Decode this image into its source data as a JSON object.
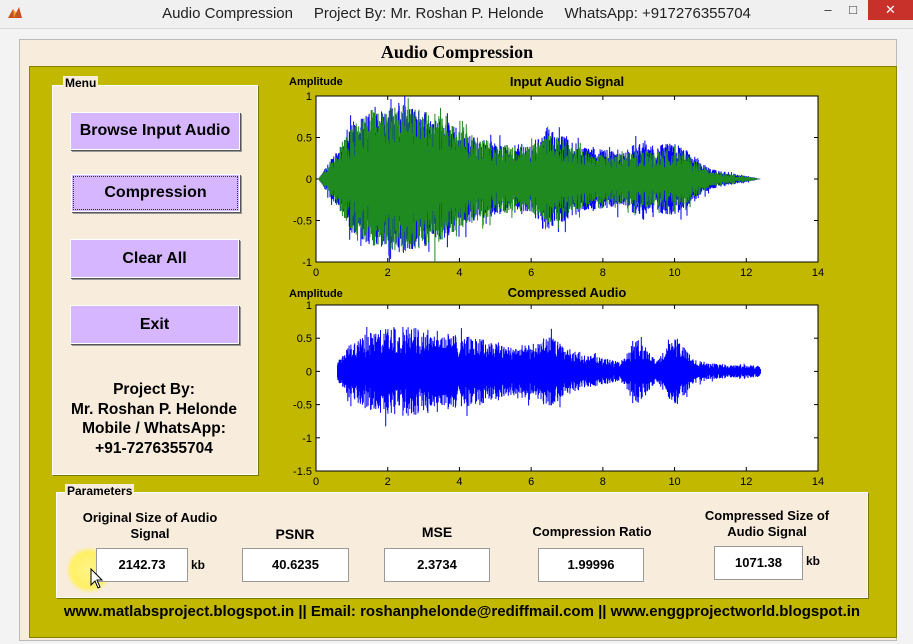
{
  "window": {
    "title": "Audio Compression     Project By: Mr. Roshan P. Helonde     WhatsApp: +917276355704",
    "min": "–",
    "max": "□",
    "close": "✕"
  },
  "main_title": "Audio Compression",
  "menu": {
    "label": "Menu",
    "buttons": [
      "Browse Input Audio",
      "Compression",
      "Clear All",
      "Exit"
    ],
    "credits": [
      "Project By:",
      "Mr. Roshan P. Helonde",
      "Mobile / WhatsApp:",
      "+91-7276355704"
    ]
  },
  "params": {
    "label": "Parameters",
    "original_label": "Original Size of Audio Signal",
    "original_value": "2142.73",
    "original_unit": "kb",
    "psnr_label": "PSNR",
    "psnr_value": "40.6235",
    "mse_label": "MSE",
    "mse_value": "2.3734",
    "ratio_label": "Compression Ratio",
    "ratio_value": "1.99996",
    "compressed_label": "Compressed Size of Audio Signal",
    "compressed_value": "1071.38",
    "compressed_unit": "kb"
  },
  "footer": "www.matlabsproject.blogspot.in || Email: roshanphelonde@rediffmail.com || www.enggprojectworld.blogspot.in",
  "colors": {
    "olive": "#c2b800",
    "button": "#d6b6ff",
    "panel": "#f8ecdc",
    "blue_trace": "#0000ff",
    "green_trace": "#1f8a1f"
  },
  "chart_data": [
    {
      "type": "line",
      "title": "Input Audio Signal",
      "ylabel": "Amplitude",
      "xlim": [
        0,
        14
      ],
      "ylim": [
        -1,
        1
      ],
      "x_ticks": [
        "0",
        "2",
        "4",
        "6",
        "8",
        "10",
        "12",
        "14"
      ],
      "y_ticks": [
        "1",
        "0.5",
        "0",
        "-0.5",
        "-1"
      ],
      "series": [
        {
          "color": "#0000ff",
          "x": [
            0.1,
            0.5,
            1,
            1.5,
            2,
            2.5,
            3,
            3.5,
            4,
            4.5,
            5,
            5.5,
            6,
            6.5,
            7,
            7.5,
            8,
            8.5,
            9,
            9.5,
            10,
            10.5,
            11,
            11.5,
            12,
            12.4
          ],
          "env": [
            0.02,
            0.3,
            0.65,
            0.8,
            0.85,
            0.9,
            0.85,
            0.75,
            0.6,
            0.5,
            0.45,
            0.4,
            0.45,
            0.6,
            0.5,
            0.4,
            0.38,
            0.35,
            0.45,
            0.4,
            0.45,
            0.3,
            0.12,
            0.08,
            0.04,
            0.0
          ]
        },
        {
          "color": "#1f8a1f",
          "x": [
            0.1,
            0.5,
            1,
            1.5,
            2,
            2.5,
            3,
            3.5,
            4,
            4.5,
            5,
            5.5,
            6,
            6.5,
            7,
            7.5,
            8,
            8.5,
            9,
            9.5,
            10,
            10.5,
            11,
            11.5,
            12,
            12.4
          ],
          "env": [
            0.02,
            0.3,
            0.65,
            0.8,
            0.85,
            0.9,
            0.85,
            0.75,
            0.6,
            0.5,
            0.45,
            0.4,
            0.4,
            0.55,
            0.45,
            0.35,
            0.3,
            0.3,
            0.35,
            0.32,
            0.4,
            0.25,
            0.1,
            0.06,
            0.03,
            0.0
          ]
        }
      ]
    },
    {
      "type": "line",
      "title": "Compressed Audio",
      "ylabel": "Amplitude",
      "xlim": [
        0,
        14
      ],
      "ylim": [
        -1.5,
        1
      ],
      "x_ticks": [
        "0",
        "2",
        "4",
        "6",
        "8",
        "10",
        "12",
        "14"
      ],
      "y_ticks": [
        "1",
        "0.5",
        "0",
        "-0.5",
        "-1",
        "-1.5"
      ],
      "series": [
        {
          "color": "#0000ff",
          "x": [
            0.6,
            1,
            1.5,
            2,
            2.5,
            3,
            3.5,
            4,
            4.5,
            5,
            5.5,
            6,
            6.5,
            7,
            7.5,
            8,
            8.5,
            9,
            9.5,
            10,
            10.5,
            11,
            11.5,
            12,
            12.4
          ],
          "env": [
            0.15,
            0.45,
            0.6,
            0.65,
            0.7,
            0.65,
            0.6,
            0.55,
            0.5,
            0.45,
            0.4,
            0.4,
            0.55,
            0.35,
            0.25,
            0.2,
            0.15,
            0.5,
            0.15,
            0.55,
            0.2,
            0.12,
            0.1,
            0.1,
            0.08
          ]
        }
      ]
    }
  ]
}
